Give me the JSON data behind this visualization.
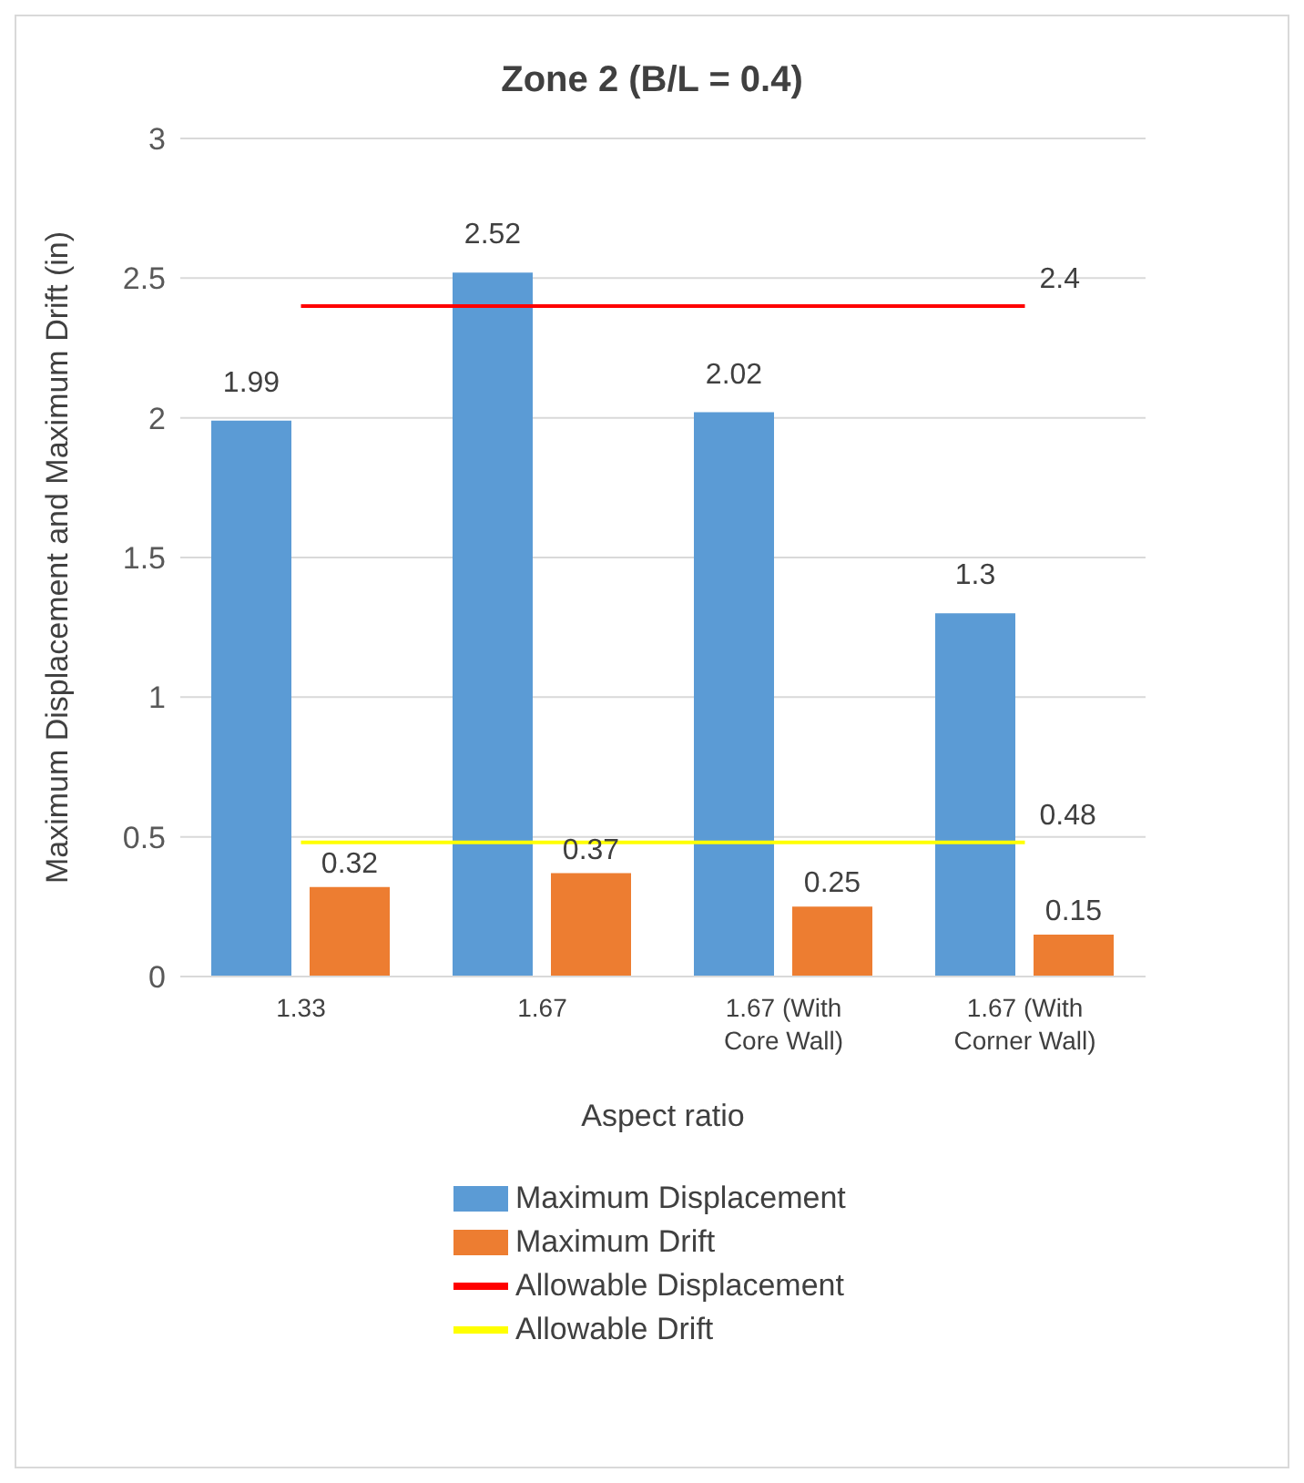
{
  "chart_data": {
    "type": "bar",
    "title": "Zone 2 (B/L = 0.4)",
    "xlabel": "Aspect ratio",
    "ylabel": "Maximum Displacement and Maximum Drift (in)",
    "categories": [
      "1.33",
      "1.67",
      "1.67 (With Core Wall)",
      "1.67 (With Corner Wall)"
    ],
    "series": [
      {
        "name": "Maximum Displacement",
        "color": "#5b9bd5",
        "values": [
          1.99,
          2.52,
          2.02,
          1.3
        ],
        "value_labels": [
          "1.99",
          "2.52",
          "2.02",
          "1.3"
        ]
      },
      {
        "name": "Maximum Drift",
        "color": "#ed7d31",
        "values": [
          0.32,
          0.37,
          0.25,
          0.15
        ],
        "value_labels": [
          "0.32",
          "0.37",
          "0.25",
          "0.15"
        ]
      },
      {
        "name": "Allowable Displacement",
        "type": "line",
        "color": "#ff0000",
        "values": [
          2.4,
          2.4,
          2.4,
          2.4
        ],
        "value_labels": [
          null,
          null,
          null,
          "2.4"
        ]
      },
      {
        "name": "Allowable Drift",
        "type": "line",
        "color": "#ffff00",
        "values": [
          0.48,
          0.48,
          0.48,
          0.48
        ],
        "value_labels": [
          null,
          null,
          null,
          "0.48"
        ]
      }
    ],
    "ylim": [
      0,
      3
    ],
    "yticks": [
      0,
      0.5,
      1,
      1.5,
      2,
      2.5,
      3
    ],
    "grid": "y",
    "legend": "bottom"
  }
}
